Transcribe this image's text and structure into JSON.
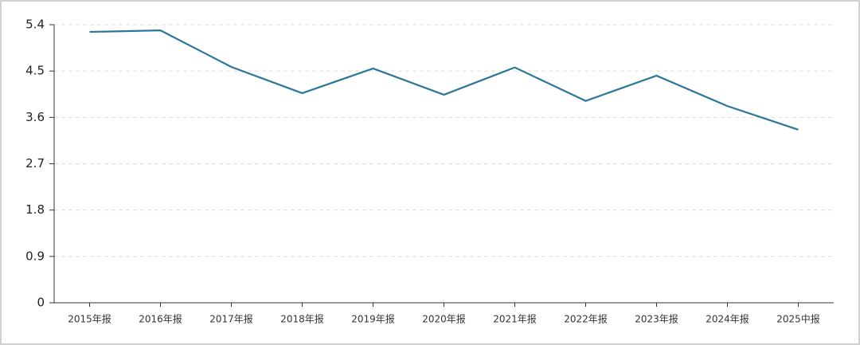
{
  "chart_data": {
    "type": "line",
    "categories": [
      "2015年报",
      "2016年报",
      "2017年报",
      "2018年报",
      "2019年报",
      "2020年报",
      "2021年报",
      "2022年报",
      "2023年报",
      "2024年报",
      "2025中报"
    ],
    "series": [
      {
        "name": null,
        "color": "#2b7799",
        "values": [
          5.26,
          5.29,
          4.58,
          4.07,
          4.55,
          4.04,
          4.57,
          3.92,
          4.41,
          3.82,
          3.36
        ]
      }
    ],
    "ylim": [
      0,
      5.4
    ],
    "yticks": [
      0,
      0.9,
      1.8,
      2.7,
      3.6,
      4.5,
      5.4
    ],
    "grid": true
  }
}
